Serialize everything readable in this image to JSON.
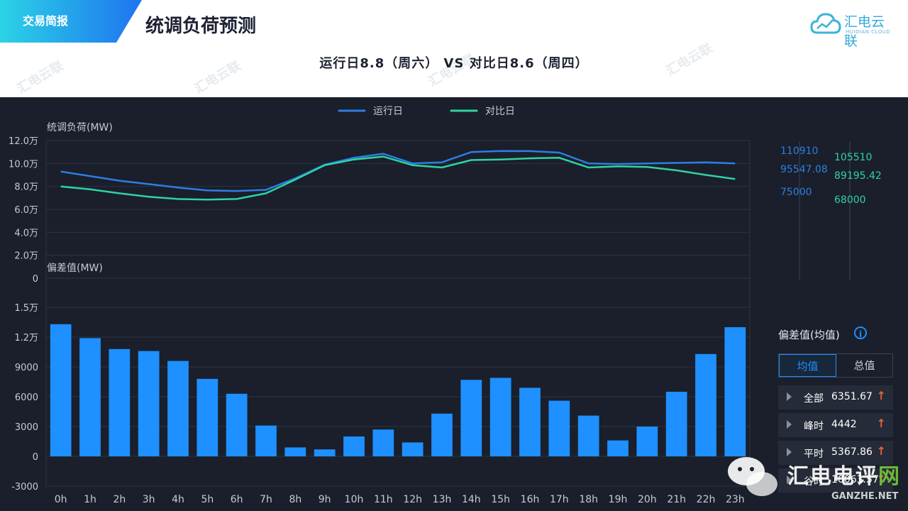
{
  "header": {
    "tag": "交易简报",
    "title": "统调负荷预测",
    "brand": "汇电云联",
    "brand_en": "HUIDIAN CLOUD",
    "subtitle": "运行日8.8（周六） VS 对比日8.6（周四）"
  },
  "watermarks": [
    "汇电云联",
    "汇电云联",
    "汇电云联",
    "汇电云联"
  ],
  "colors": {
    "run_day": "#2b7fe0",
    "compare_day": "#2ed3a3",
    "bar": "#1e90ff",
    "accent_up": "#e8603c",
    "panel_bg": "#1a1f2b"
  },
  "chart_data": [
    {
      "type": "line",
      "ylabel": "统调负荷(MW)",
      "ylim": [
        0,
        120000
      ],
      "y_ticks": [
        "0",
        "2.0万",
        "4.0万",
        "6.0万",
        "8.0万",
        "10.0万",
        "12.0万"
      ],
      "x": [
        "0h",
        "1h",
        "2h",
        "3h",
        "4h",
        "5h",
        "6h",
        "7h",
        "8h",
        "9h",
        "10h",
        "11h",
        "12h",
        "13h",
        "14h",
        "15h",
        "16h",
        "17h",
        "18h",
        "19h",
        "20h",
        "21h",
        "22h",
        "23h"
      ],
      "legend_position": "top-center",
      "series": [
        {
          "name": "运行日",
          "values": [
            93000,
            89000,
            85000,
            82000,
            79000,
            76500,
            76000,
            77000,
            87000,
            99000,
            105000,
            108500,
            100000,
            101000,
            110000,
            110910,
            110800,
            109500,
            100000,
            99500,
            100000,
            100500,
            101000,
            100000
          ]
        },
        {
          "name": "对比日",
          "values": [
            80000,
            77500,
            74000,
            71000,
            69000,
            68500,
            69000,
            74000,
            86000,
            98500,
            103500,
            106000,
            98500,
            96500,
            103000,
            103500,
            104500,
            105000,
            96500,
            97500,
            97000,
            94000,
            90000,
            86500
          ]
        }
      ],
      "run_day_stats": {
        "max": "110910",
        "avg": "95547.08",
        "min": "75000"
      },
      "compare_day_stats": {
        "max": "105510",
        "avg": "89195.42",
        "min": "68000"
      }
    },
    {
      "type": "bar",
      "ylabel": "偏差值(MW)",
      "ylim": [
        -3000,
        15000
      ],
      "y_ticks": [
        "-3000",
        "0",
        "3000",
        "6000",
        "9000",
        "1.2万",
        "1.5万"
      ],
      "categories": [
        "0h",
        "1h",
        "2h",
        "3h",
        "4h",
        "5h",
        "6h",
        "7h",
        "8h",
        "9h",
        "10h",
        "11h",
        "12h",
        "13h",
        "14h",
        "15h",
        "16h",
        "17h",
        "18h",
        "19h",
        "20h",
        "21h",
        "22h",
        "23h"
      ],
      "values": [
        13300,
        11900,
        10800,
        10600,
        9600,
        7800,
        6300,
        3100,
        900,
        700,
        2000,
        2700,
        1400,
        4300,
        7700,
        7900,
        6900,
        5600,
        4100,
        1600,
        3000,
        6500,
        10300,
        13000
      ]
    }
  ],
  "side_panel": {
    "title": "偏差值(均值)",
    "info_icon": "i",
    "tabs": [
      {
        "label": "均值",
        "active": true
      },
      {
        "label": "总值",
        "active": false
      }
    ],
    "stats": [
      {
        "label": "全部",
        "value": "6351.67",
        "arrow": "↑"
      },
      {
        "label": "峰时",
        "value": "4442",
        "arrow": "↑"
      },
      {
        "label": "平时",
        "value": "5367.86",
        "arrow": "↑"
      },
      {
        "label": "谷时",
        "value": "10063.57",
        "arrow": "↑"
      }
    ]
  },
  "footer_watermark": {
    "text_white": "汇电电评",
    "text_green": "网",
    "url": "GANZHE.NET"
  }
}
